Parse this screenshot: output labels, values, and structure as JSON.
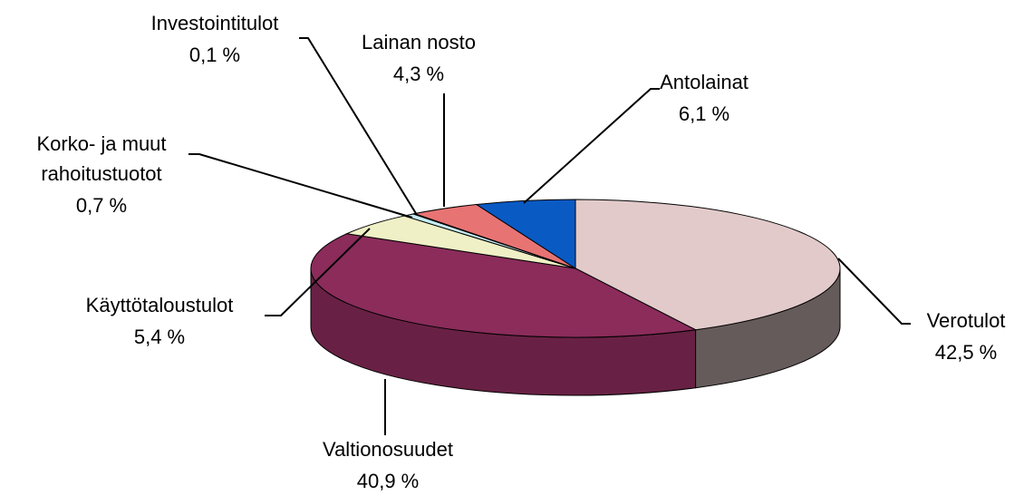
{
  "chart_data": {
    "type": "pie3d",
    "categories": [
      "Verotulot",
      "Valtionosuudet",
      "Käyttötaloustulot",
      "Korko- ja muut\nrahoitustuotot",
      "Investointitulot",
      "Lainan nosto",
      "Antolainat"
    ],
    "values": [
      42.5,
      40.9,
      5.4,
      0.7,
      0.1,
      4.3,
      6.1
    ],
    "value_labels": [
      "42,5 %",
      "40,9 %",
      "5,4 %",
      "0,7 %",
      "0,1 %",
      "4,3 %",
      "6,1 %"
    ],
    "colors": [
      "#e2caca",
      "#8b2c5b",
      "#f0f0c6",
      "#c4ecf2",
      "#9a9ad0",
      "#e87373",
      "#0a5ac4"
    ]
  }
}
